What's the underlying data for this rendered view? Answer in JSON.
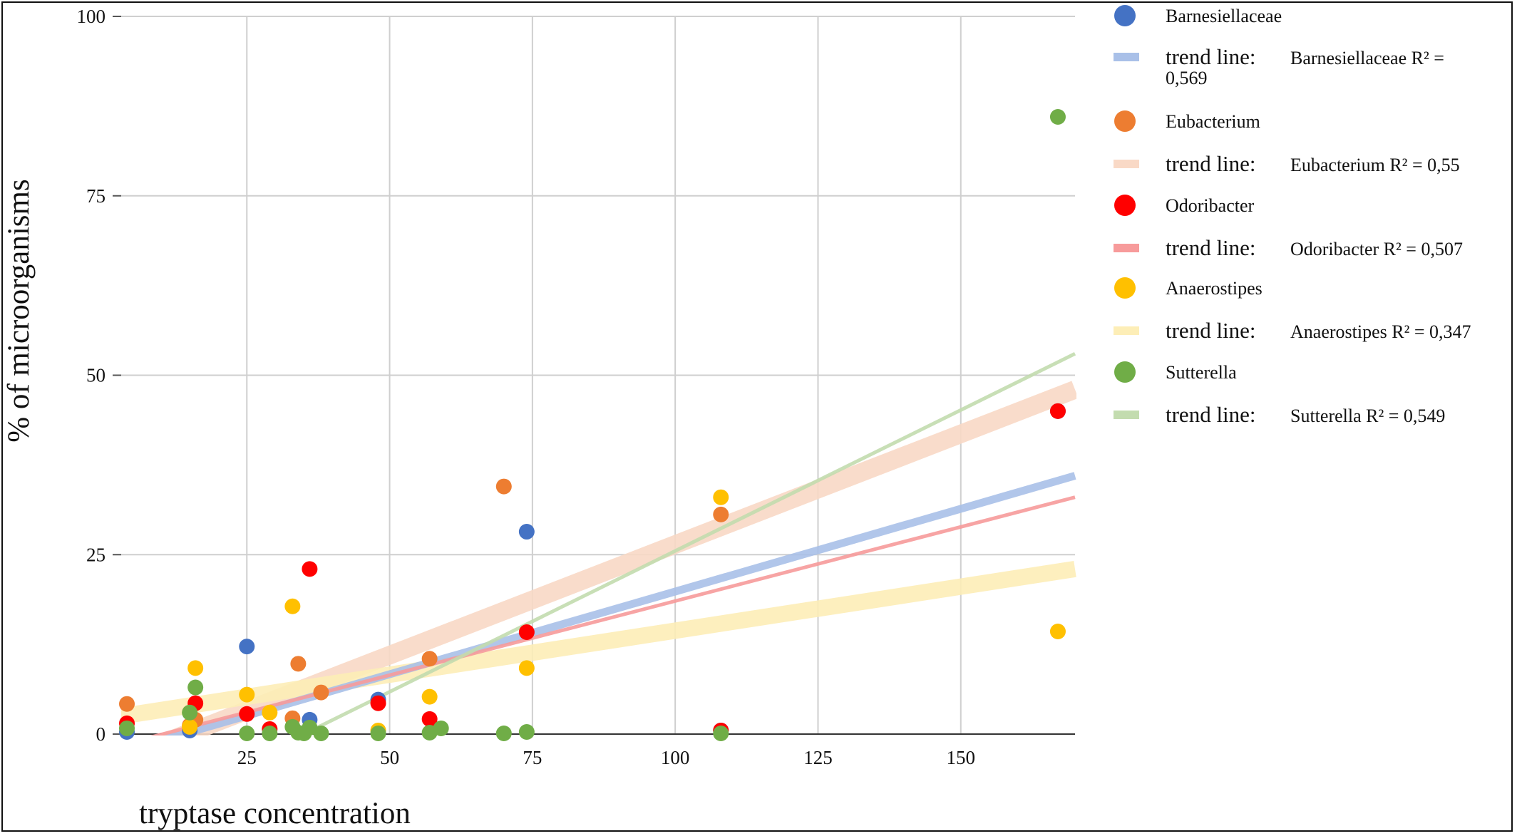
{
  "chart_data": {
    "type": "scatter",
    "xlabel": "tryptase concentration",
    "ylabel": "% of microorganisms",
    "xlim": [
      3,
      170
    ],
    "ylim": [
      0,
      100
    ],
    "xticks": [
      "25",
      "50",
      "75",
      "100",
      "125",
      "150"
    ],
    "xtick_values": [
      25,
      50,
      75,
      100,
      125,
      150
    ],
    "yticks": [
      "0",
      "25",
      "50",
      "75",
      "100"
    ],
    "ytick_values": [
      0,
      25,
      50,
      75,
      100
    ],
    "grid": true,
    "legend_position": "right",
    "series": [
      {
        "name": "Barnesiellaceae",
        "color": "#4472c4",
        "points": [
          [
            4,
            0.3
          ],
          [
            15,
            0.5
          ],
          [
            25,
            12.2
          ],
          [
            36,
            2
          ],
          [
            48,
            4.8
          ],
          [
            74,
            28.2
          ],
          [
            108,
            0.5
          ],
          [
            167,
            45
          ]
        ],
        "trend": {
          "label_prefix": "trend line:",
          "label": "Barnesiellaceae R² = 0,569",
          "start": [
            3,
            -2.5
          ],
          "end": [
            170,
            36
          ],
          "color": "#a9c0e8",
          "width": 11
        }
      },
      {
        "name": "Eubacterium",
        "color": "#ed7d31",
        "points": [
          [
            4,
            4.2
          ],
          [
            15,
            1.2
          ],
          [
            16,
            2
          ],
          [
            33,
            2.2
          ],
          [
            34,
            9.8
          ],
          [
            38,
            5.8
          ],
          [
            57,
            10.5
          ],
          [
            70,
            34.5
          ],
          [
            108,
            30.6
          ]
        ],
        "trend": {
          "label_prefix": "trend line:",
          "label": "Eubacterium R² = 0,55",
          "start": [
            3,
            -3.5
          ],
          "end": [
            170,
            48
          ],
          "color": "#f9d9c6",
          "width": 26
        }
      },
      {
        "name": "Odoribacter",
        "color": "#ff0000",
        "points": [
          [
            4,
            1.5
          ],
          [
            16,
            4.3
          ],
          [
            25,
            2.8
          ],
          [
            29,
            0.7
          ],
          [
            36,
            23
          ],
          [
            48,
            4.3
          ],
          [
            57,
            2.1
          ],
          [
            74,
            14.2
          ],
          [
            108,
            0.5
          ],
          [
            167,
            45
          ]
        ],
        "trend": {
          "label_prefix": "trend line:",
          "label": "Odoribacter R² = 0,507",
          "start": [
            3,
            -1.5
          ],
          "end": [
            170,
            33
          ],
          "color": "#f79b9b",
          "width": 5
        }
      },
      {
        "name": "Anaerostipes",
        "color": "#ffc000",
        "points": [
          [
            15,
            1
          ],
          [
            16,
            9.2
          ],
          [
            25,
            5.5
          ],
          [
            29,
            3
          ],
          [
            33,
            17.8
          ],
          [
            48,
            0.5
          ],
          [
            57,
            5.2
          ],
          [
            74,
            9.2
          ],
          [
            108,
            33
          ],
          [
            167,
            14.3
          ]
        ],
        "trend": {
          "label_prefix": "trend line:",
          "label": "Anaerostipes R² = 0,347",
          "start": [
            3,
            2.5
          ],
          "end": [
            170,
            23
          ],
          "color": "#fdeeb7",
          "width": 23
        }
      },
      {
        "name": "Sutterella",
        "color": "#70ad47",
        "points": [
          [
            4,
            0.8
          ],
          [
            15,
            3
          ],
          [
            16,
            6.5
          ],
          [
            25,
            0.1
          ],
          [
            29,
            0.1
          ],
          [
            33,
            1
          ],
          [
            34,
            0.2
          ],
          [
            35,
            0.1
          ],
          [
            36,
            0.9
          ],
          [
            38,
            0.1
          ],
          [
            48,
            0.1
          ],
          [
            57,
            0.2
          ],
          [
            59,
            0.8
          ],
          [
            70,
            0.1
          ],
          [
            74,
            0.3
          ],
          [
            108,
            0.1
          ],
          [
            167,
            86
          ]
        ],
        "trend": {
          "label_prefix": "trend line:",
          "label": "Sutterella R² = 0,549",
          "start": [
            35,
            0
          ],
          "end": [
            170,
            53
          ],
          "color": "#c3dcaf",
          "width": 5
        }
      }
    ]
  }
}
